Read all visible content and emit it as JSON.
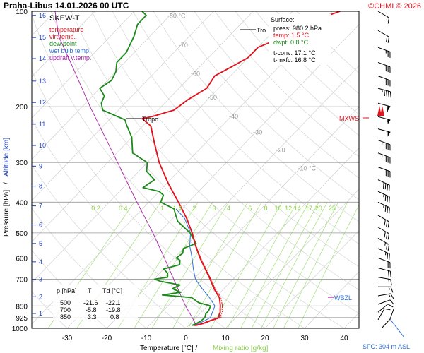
{
  "header": {
    "title": "Praha-Libus    14.01.2026 00 UTC",
    "copyright": "©CHMI © 2026"
  },
  "legend": {
    "title": "SKEW-T",
    "items": [
      {
        "label": "temperature",
        "color": "#e0141e"
      },
      {
        "label": "virt.temp.",
        "color": "#e0141e"
      },
      {
        "label": "dew point",
        "color": "#1b8a1b"
      },
      {
        "label": "wet bulb temp.",
        "color": "#2f6fd6"
      },
      {
        "label": "updraft v.temp.",
        "color": "#a51fa5"
      }
    ]
  },
  "surface_box": {
    "heading": "Surface:",
    "press": "press: 980.2 hPa",
    "temp": "temp: 1.5 °C",
    "dwpt": "dwpt: 0.8 °C",
    "tconv": "t-conv: 17.1 °C",
    "tmxfc": "t-mxfc: 16.8 °C",
    "colors": {
      "press": "#000000",
      "temp": "#e0141e",
      "dwpt": "#1b8a1b",
      "tconv": "#000000",
      "tmxfc": "#000000"
    }
  },
  "table": {
    "headers": [
      "p [hPa]",
      "T",
      "Td [°C]"
    ],
    "rows": [
      [
        "500",
        "-21.6",
        "-22.1"
      ],
      [
        "700",
        "-5.8",
        "-19.8"
      ],
      [
        "850",
        "3.3",
        "0.8"
      ]
    ]
  },
  "annotations": {
    "tropo_upper": "Tro",
    "tropo_lower": "Tropo",
    "mxws": "MXWS",
    "wbzl": "WBZL",
    "sfc": "SFC: 304 m ASL"
  },
  "axes": {
    "xlabel_temp": "Temperature [°C]  /",
    "xlabel_mix": "Mixing ratio [g/kg]",
    "ylabel_pressure": "Pressure [hPa]",
    "ylabel_altitude": "Altitude [km]",
    "colors": {
      "pressure": "#000000",
      "altitude": "#1f3fbf",
      "mixing": "#8fd14f"
    }
  },
  "chart_data": {
    "type": "line",
    "title": "SKEW-T",
    "x_ticks": [
      -30,
      -20,
      -10,
      0,
      10,
      20,
      30,
      40
    ],
    "pressure_ticks": [
      100,
      200,
      300,
      400,
      500,
      600,
      700,
      850,
      925,
      1000
    ],
    "altitude_ticks": [
      {
        "km": 1,
        "p": 898
      },
      {
        "km": 2,
        "p": 795
      },
      {
        "km": 3,
        "p": 701
      },
      {
        "km": 4,
        "p": 617
      },
      {
        "km": 5,
        "p": 540
      },
      {
        "km": 6,
        "p": 472
      },
      {
        "km": 7,
        "p": 411
      },
      {
        "km": 8,
        "p": 356
      },
      {
        "km": 9,
        "p": 308
      },
      {
        "km": 10,
        "p": 265
      },
      {
        "km": 11,
        "p": 227
      },
      {
        "km": 12,
        "p": 194
      },
      {
        "km": 13,
        "p": 166
      },
      {
        "km": 14,
        "p": 141
      },
      {
        "km": 15,
        "p": 121
      },
      {
        "km": 16,
        "p": 103
      }
    ],
    "isotherm_labels": [
      {
        "t": -80,
        "p": 105,
        "text": "-80 °C"
      },
      {
        "t": -70,
        "p": 130,
        "text": "-70"
      },
      {
        "t": -60,
        "p": 160,
        "text": "-60"
      },
      {
        "t": -50,
        "p": 190,
        "text": "-50"
      },
      {
        "t": -40,
        "p": 218,
        "text": "-40"
      },
      {
        "t": -30,
        "p": 245,
        "text": "-30"
      },
      {
        "t": -20,
        "p": 278,
        "text": "-20"
      },
      {
        "t": -10,
        "p": 318,
        "text": "-10 °C"
      }
    ],
    "mixing_ratio_labels": [
      "0.2",
      "0.4",
      "1",
      "1.4",
      "2",
      "3",
      "4",
      "6",
      "8",
      "10",
      "12",
      "14",
      "17",
      "20",
      "25"
    ],
    "mixing_ratio_values": [
      0.2,
      0.4,
      1,
      1.4,
      2,
      3,
      4,
      6,
      8,
      10,
      12,
      14,
      17,
      20,
      25
    ],
    "series": [
      {
        "name": "temperature",
        "color": "#e0141e",
        "points": [
          [
            980,
            1.5
          ],
          [
            965,
            3.2
          ],
          [
            950,
            4.0
          ],
          [
            925,
            5.8
          ],
          [
            910,
            5.2
          ],
          [
            890,
            4.8
          ],
          [
            870,
            4.0
          ],
          [
            850,
            3.3
          ],
          [
            800,
            1.0
          ],
          [
            750,
            -2.5
          ],
          [
            700,
            -5.8
          ],
          [
            650,
            -9.5
          ],
          [
            600,
            -13.5
          ],
          [
            550,
            -17.5
          ],
          [
            500,
            -21.6
          ],
          [
            450,
            -26.5
          ],
          [
            400,
            -32.5
          ],
          [
            350,
            -39.5
          ],
          [
            300,
            -47
          ],
          [
            260,
            -53
          ],
          [
            230,
            -58
          ],
          [
            218,
            -62
          ],
          [
            215,
            -60
          ],
          [
            205,
            -56
          ],
          [
            190,
            -55
          ],
          [
            175,
            -53
          ],
          [
            160,
            -54
          ],
          [
            150,
            -52
          ],
          [
            140,
            -50
          ],
          [
            130,
            -50
          ],
          [
            120,
            -46
          ],
          [
            113,
            -46
          ],
          [
            107,
            -42
          ],
          [
            103,
            -40
          ],
          [
            100,
            -38
          ]
        ]
      },
      {
        "name": "virt.temp.",
        "color": "#e0141e",
        "points": [
          [
            980,
            2.0
          ],
          [
            965,
            3.6
          ],
          [
            950,
            4.4
          ],
          [
            925,
            6.3
          ],
          [
            910,
            5.7
          ],
          [
            890,
            5.3
          ],
          [
            870,
            4.5
          ],
          [
            850,
            3.8
          ],
          [
            800,
            1.4
          ],
          [
            750,
            -2.2
          ],
          [
            700,
            -5.6
          ],
          [
            650,
            -9.3
          ],
          [
            600,
            -13.3
          ],
          [
            550,
            -17.4
          ],
          [
            500,
            -21.5
          ],
          [
            450,
            -26.4
          ],
          [
            400,
            -32.4
          ],
          [
            350,
            -39.4
          ],
          [
            300,
            -46.9
          ],
          [
            260,
            -52.9
          ],
          [
            230,
            -57.9
          ],
          [
            218,
            -61.9
          ],
          [
            215,
            -59.9
          ],
          [
            205,
            -55.9
          ],
          [
            190,
            -54.9
          ],
          [
            175,
            -52.9
          ],
          [
            160,
            -53.9
          ],
          [
            150,
            -51.9
          ],
          [
            140,
            -49.9
          ],
          [
            130,
            -49.9
          ],
          [
            120,
            -45.9
          ],
          [
            113,
            -45.9
          ],
          [
            107,
            -41.9
          ],
          [
            103,
            -39.9
          ],
          [
            100,
            -37.9
          ]
        ]
      },
      {
        "name": "dew point",
        "color": "#1b8a1b",
        "points": [
          [
            980,
            0.8
          ],
          [
            965,
            1.5
          ],
          [
            950,
            2.0
          ],
          [
            925,
            2.2
          ],
          [
            900,
            1.5
          ],
          [
            880,
            1.5
          ],
          [
            850,
            0.8
          ],
          [
            830,
            -3
          ],
          [
            800,
            -6
          ],
          [
            785,
            -14
          ],
          [
            770,
            -10
          ],
          [
            750,
            -13
          ],
          [
            730,
            -12
          ],
          [
            710,
            -18
          ],
          [
            700,
            -19.8
          ],
          [
            690,
            -17
          ],
          [
            670,
            -18
          ],
          [
            650,
            -20
          ],
          [
            630,
            -17
          ],
          [
            610,
            -18
          ],
          [
            600,
            -19.5
          ],
          [
            580,
            -19
          ],
          [
            560,
            -20
          ],
          [
            540,
            -18
          ],
          [
            520,
            -20
          ],
          [
            500,
            -22.1
          ],
          [
            480,
            -25
          ],
          [
            460,
            -28
          ],
          [
            440,
            -30
          ],
          [
            420,
            -32
          ],
          [
            400,
            -37
          ],
          [
            380,
            -38
          ],
          [
            370,
            -40
          ],
          [
            360,
            -45
          ],
          [
            340,
            -44
          ],
          [
            320,
            -48
          ],
          [
            300,
            -50
          ],
          [
            280,
            -56
          ],
          [
            250,
            -60
          ],
          [
            230,
            -64
          ],
          [
            220,
            -66
          ],
          [
            205,
            -74
          ],
          [
            195,
            -76
          ],
          [
            185,
            -77
          ],
          [
            175,
            -80
          ],
          [
            165,
            -79
          ],
          [
            155,
            -80
          ],
          [
            145,
            -82
          ],
          [
            135,
            -82
          ],
          [
            120,
            -84
          ],
          [
            110,
            -86
          ],
          [
            103,
            -86
          ],
          [
            100,
            -88
          ]
        ]
      },
      {
        "name": "wet bulb temp.",
        "color": "#2f6fd6",
        "points": [
          [
            980,
            1.1
          ],
          [
            950,
            2.8
          ],
          [
            925,
            3.6
          ],
          [
            850,
            1.9
          ],
          [
            800,
            -1.5
          ],
          [
            750,
            -5.5
          ],
          [
            700,
            -9.5
          ],
          [
            650,
            -12.5
          ],
          [
            600,
            -15.5
          ],
          [
            550,
            -19
          ],
          [
            500,
            -22
          ],
          [
            450,
            -27
          ],
          [
            420,
            -31.5
          ]
        ]
      },
      {
        "name": "updraft v.temp.",
        "color": "#a51fa5",
        "points": [
          [
            980,
            2.0
          ],
          [
            925,
            -1.0
          ],
          [
            850,
            -5.5
          ],
          [
            800,
            -8.5
          ],
          [
            700,
            -15
          ],
          [
            600,
            -22.5
          ],
          [
            500,
            -31.5
          ],
          [
            400,
            -43
          ],
          [
            300,
            -57.5
          ],
          [
            200,
            -78
          ],
          [
            150,
            -92
          ],
          [
            120,
            -103
          ],
          [
            100,
            -110
          ]
        ]
      }
    ],
    "wind_barbs": [
      {
        "p": 100,
        "dir": 300,
        "kt": 15
      },
      {
        "p": 115,
        "dir": 300,
        "kt": 20
      },
      {
        "p": 130,
        "dir": 290,
        "kt": 25
      },
      {
        "p": 145,
        "dir": 290,
        "kt": 30
      },
      {
        "p": 160,
        "dir": 290,
        "kt": 35
      },
      {
        "p": 175,
        "dir": 285,
        "kt": 45
      },
      {
        "p": 195,
        "dir": 285,
        "kt": 60
      },
      {
        "p": 215,
        "dir": 285,
        "kt": 55
      },
      {
        "p": 235,
        "dir": 285,
        "kt": 50
      },
      {
        "p": 255,
        "dir": 290,
        "kt": 45
      },
      {
        "p": 280,
        "dir": 290,
        "kt": 45
      },
      {
        "p": 310,
        "dir": 290,
        "kt": 40
      },
      {
        "p": 340,
        "dir": 295,
        "kt": 40
      },
      {
        "p": 370,
        "dir": 295,
        "kt": 35
      },
      {
        "p": 400,
        "dir": 295,
        "kt": 35
      },
      {
        "p": 440,
        "dir": 300,
        "kt": 30
      },
      {
        "p": 480,
        "dir": 300,
        "kt": 30
      },
      {
        "p": 520,
        "dir": 300,
        "kt": 25
      },
      {
        "p": 560,
        "dir": 295,
        "kt": 25
      },
      {
        "p": 600,
        "dir": 290,
        "kt": 20
      },
      {
        "p": 645,
        "dir": 285,
        "kt": 20
      },
      {
        "p": 690,
        "dir": 280,
        "kt": 15
      },
      {
        "p": 740,
        "dir": 270,
        "kt": 15
      },
      {
        "p": 790,
        "dir": 260,
        "kt": 15
      },
      {
        "p": 840,
        "dir": 250,
        "kt": 10
      },
      {
        "p": 890,
        "dir": 230,
        "kt": 10
      },
      {
        "p": 940,
        "dir": 210,
        "kt": 10
      }
    ]
  }
}
